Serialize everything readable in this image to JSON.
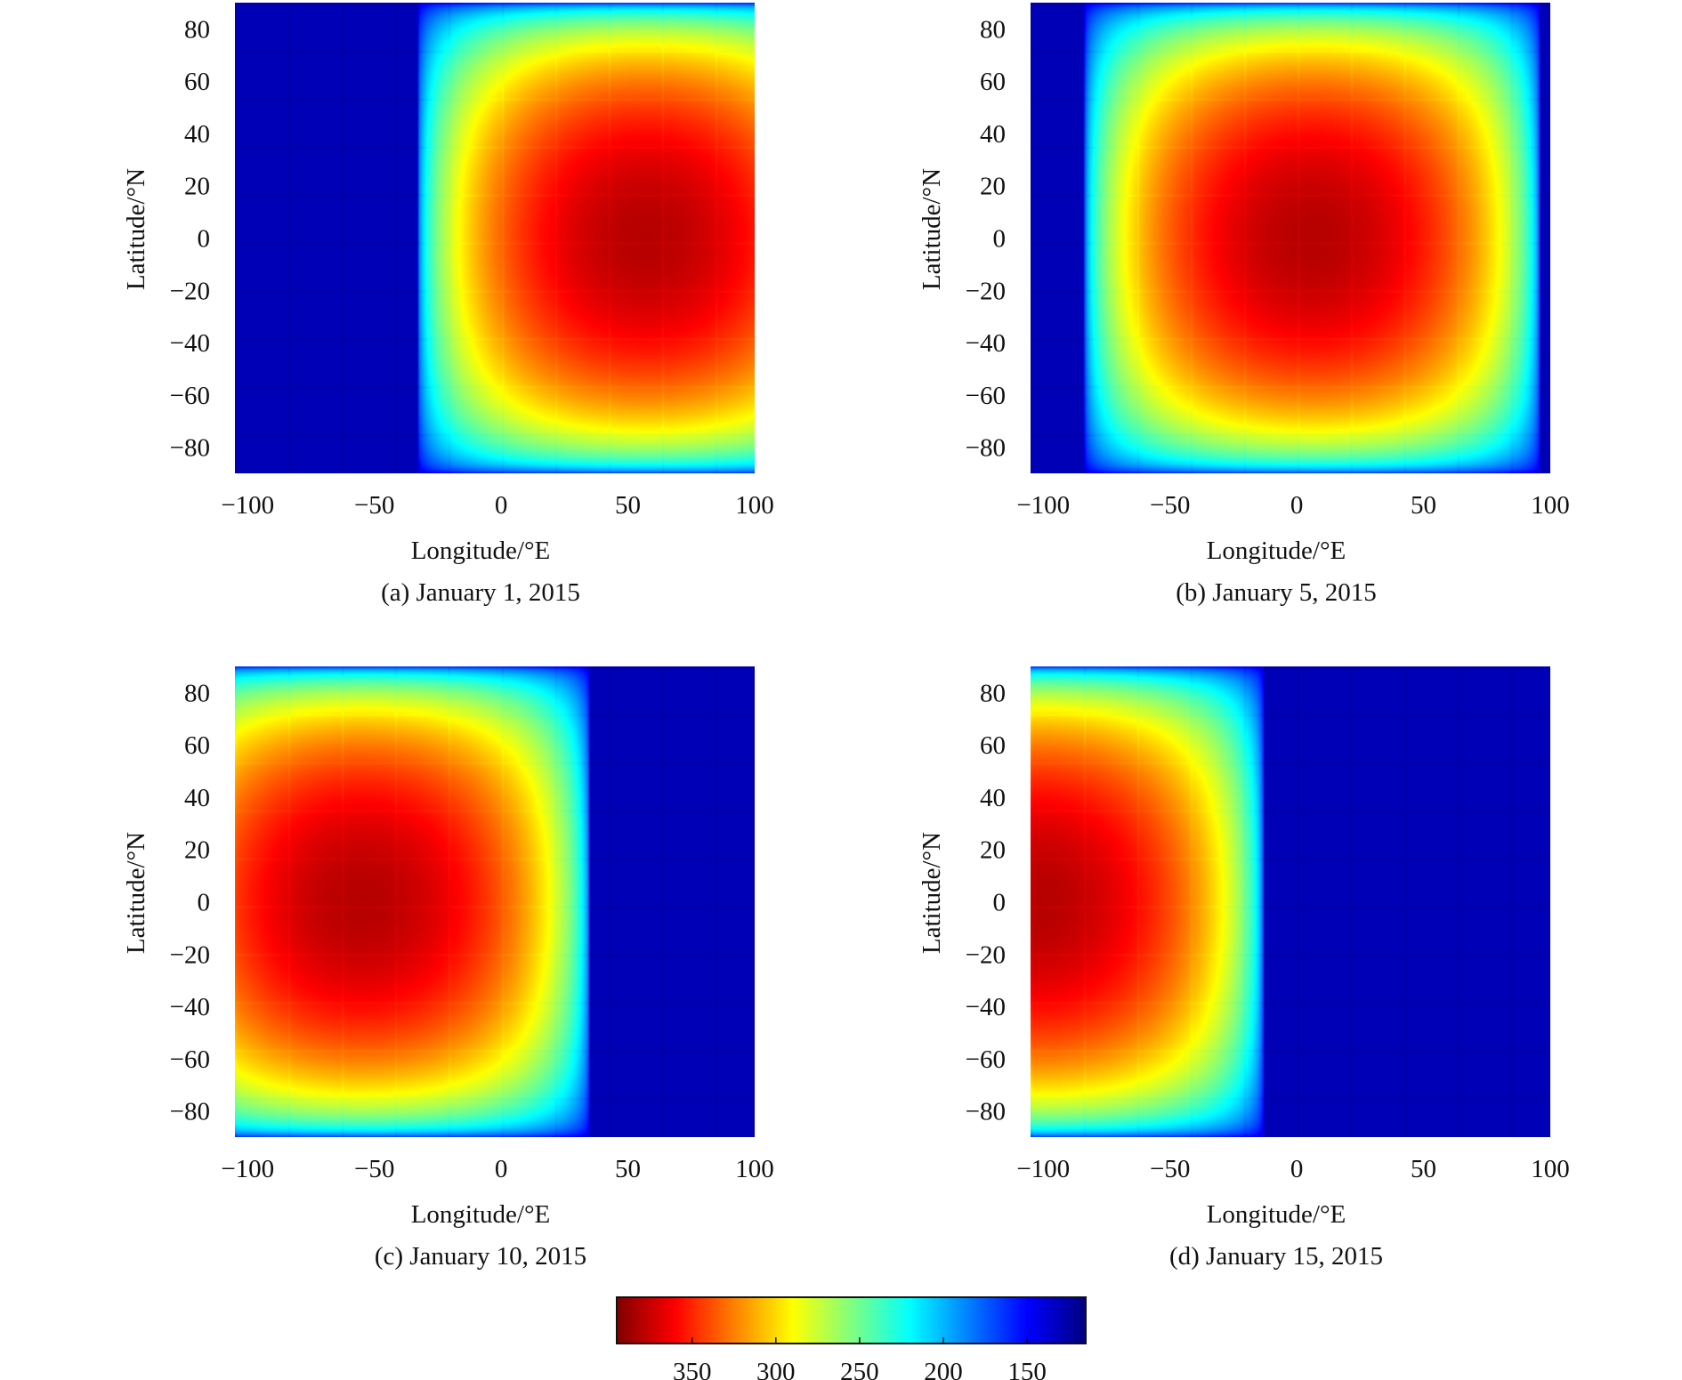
{
  "chart_data": [
    {
      "type": "heatmap",
      "panel": "a",
      "caption": "(a) January 1, 2015",
      "xlabel": "Longitude/°E",
      "ylabel": "Latitude/°N",
      "xlim": [
        -105,
        100
      ],
      "ylim": [
        -90,
        90
      ],
      "xticks": [
        -100,
        -50,
        0,
        50,
        100
      ],
      "xtick_labels": [
        "−100",
        "−50",
        "0",
        "50",
        "100"
      ],
      "yticks": [
        80,
        60,
        40,
        20,
        0,
        -20,
        -40,
        -60,
        -80
      ],
      "ytick_labels": [
        "80",
        "60",
        "40",
        "20",
        "0",
        "−20",
        "−40",
        "−60",
        "−80"
      ],
      "subsolar_longitude": 57,
      "subsolar_latitude": 0,
      "max_value": 380,
      "night_value": 130
    },
    {
      "type": "heatmap",
      "panel": "b",
      "caption": "(b) January 5, 2015",
      "xlabel": "Longitude/°E",
      "ylabel": "Latitude/°N",
      "xlim": [
        -105,
        100
      ],
      "ylim": [
        -90,
        90
      ],
      "xticks": [
        -100,
        -50,
        0,
        50,
        100
      ],
      "xtick_labels": [
        "−100",
        "−50",
        "0",
        "50",
        "100"
      ],
      "yticks": [
        80,
        60,
        40,
        20,
        0,
        -20,
        -40,
        -60,
        -80
      ],
      "ytick_labels": [
        "80",
        "60",
        "40",
        "20",
        "0",
        "−20",
        "−40",
        "−60",
        "−80"
      ],
      "subsolar_longitude": 6,
      "subsolar_latitude": 0,
      "max_value": 380,
      "night_value": 130
    },
    {
      "type": "heatmap",
      "panel": "c",
      "caption": "(c) January 10, 2015",
      "xlabel": "Longitude/°E",
      "ylabel": "Latitude/°N",
      "xlim": [
        -105,
        100
      ],
      "ylim": [
        -90,
        90
      ],
      "xticks": [
        -100,
        -50,
        0,
        50,
        100
      ],
      "xtick_labels": [
        "−100",
        "−50",
        "0",
        "50",
        "100"
      ],
      "yticks": [
        80,
        60,
        40,
        20,
        0,
        -20,
        -40,
        -60,
        -80
      ],
      "ytick_labels": [
        "80",
        "60",
        "40",
        "20",
        "0",
        "−20",
        "−40",
        "−60",
        "−80"
      ],
      "subsolar_longitude": -55,
      "subsolar_latitude": 0,
      "max_value": 380,
      "night_value": 130
    },
    {
      "type": "heatmap",
      "panel": "d",
      "caption": "(d) January 15, 2015",
      "xlabel": "Longitude/°E",
      "ylabel": "Latitude/°N",
      "xlim": [
        -105,
        100
      ],
      "ylim": [
        -90,
        90
      ],
      "xticks": [
        -100,
        -50,
        0,
        50,
        100
      ],
      "xtick_labels": [
        "−100",
        "−50",
        "0",
        "50",
        "100"
      ],
      "yticks": [
        80,
        60,
        40,
        20,
        0,
        -20,
        -40,
        -60,
        -80
      ],
      "ytick_labels": [
        "80",
        "60",
        "40",
        "20",
        "0",
        "−20",
        "−40",
        "−60",
        "−80"
      ],
      "subsolar_longitude": -103,
      "subsolar_latitude": 0,
      "max_value": 380,
      "night_value": 130
    }
  ],
  "colorbar": {
    "range": [
      115,
      395
    ],
    "direction": "high-to-low",
    "ticks": [
      350,
      300,
      250,
      200,
      150
    ],
    "tick_labels": [
      "350",
      "300",
      "250",
      "200",
      "150"
    ]
  },
  "colors": {
    "colormap": [
      "#00008f",
      "#0000ff",
      "#0080ff",
      "#00ffff",
      "#80ff80",
      "#ffff00",
      "#ff8000",
      "#ff0000",
      "#800000"
    ],
    "text": "#111111",
    "background": "#ffffff"
  }
}
